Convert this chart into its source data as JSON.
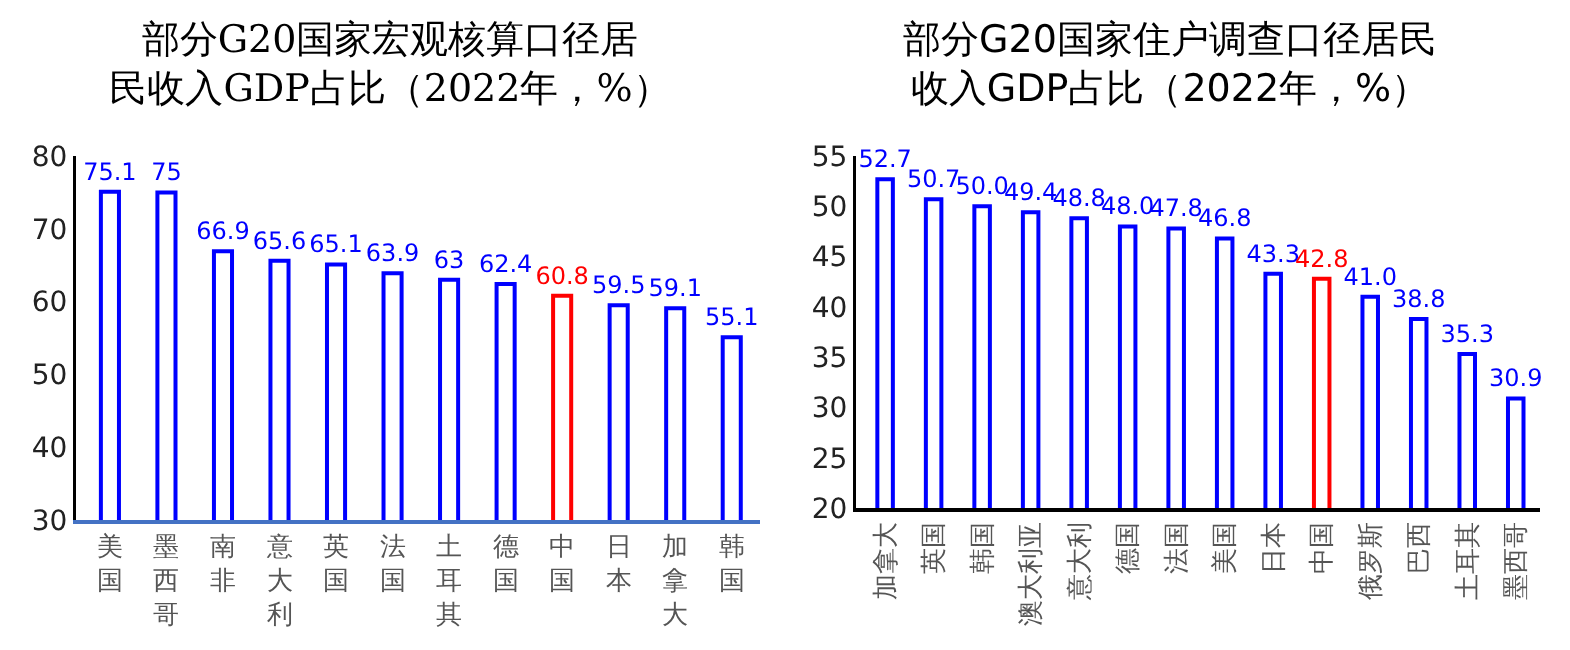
{
  "chart_data": [
    {
      "type": "bar",
      "title": "部分G20国家宏观核算口径居民收入GDP占比（2022年，%）",
      "categories": [
        "美国",
        "墨西哥",
        "南非",
        "意大利",
        "英国",
        "法国",
        "土耳其",
        "德国",
        "中国",
        "日本",
        "加拿大",
        "韩国"
      ],
      "values": [
        75.1,
        75,
        66.9,
        65.6,
        65.1,
        63.9,
        63,
        62.4,
        60.8,
        59.5,
        59.1,
        55.1
      ],
      "colors": [
        "#0000ff",
        "#0000ff",
        "#0000ff",
        "#0000ff",
        "#0000ff",
        "#0000ff",
        "#0000ff",
        "#0000ff",
        "#ff0000",
        "#0000ff",
        "#0000ff",
        "#0000ff"
      ],
      "ylim": [
        30,
        80
      ],
      "yticks": [
        30,
        40,
        50,
        60,
        70,
        80
      ],
      "grid": false,
      "data_labels": true
    },
    {
      "type": "bar",
      "title": "部分G20国家住户调查口径居民收入GDP占比（2022年，%）",
      "categories": [
        "加拿大",
        "英国",
        "韩国",
        "澳大利亚",
        "意大利",
        "德国",
        "法国",
        "美国",
        "日本",
        "中国",
        "俄罗斯",
        "巴西",
        "土耳其",
        "墨西哥"
      ],
      "values": [
        52.7,
        50.7,
        50.0,
        49.4,
        48.8,
        48.0,
        47.8,
        46.8,
        43.3,
        42.8,
        41.0,
        38.8,
        35.3,
        30.9
      ],
      "value_labels": [
        "52.7",
        "50.7",
        "50.0",
        "49.4",
        "48.8",
        "48.0",
        "47.8",
        "46.8",
        "43.3",
        "42.8",
        "41.0",
        "38.8",
        "35.3",
        "30.9"
      ],
      "colors": [
        "#0000ff",
        "#0000ff",
        "#0000ff",
        "#0000ff",
        "#0000ff",
        "#0000ff",
        "#0000ff",
        "#0000ff",
        "#0000ff",
        "#ff0000",
        "#0000ff",
        "#0000ff",
        "#0000ff",
        "#0000ff"
      ],
      "ylim": [
        20,
        55
      ],
      "yticks": [
        20,
        25,
        30,
        35,
        40,
        45,
        50,
        55
      ],
      "grid": false
    }
  ]
}
